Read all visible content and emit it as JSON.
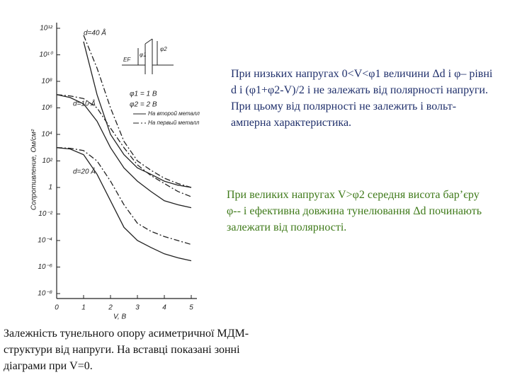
{
  "chart_data": {
    "type": "line",
    "xlabel": "V, В",
    "ylabel": "Сопротивление, Ом/см²",
    "x": [
      0,
      0.5,
      1,
      1.5,
      2,
      2.5,
      3,
      3.5,
      4,
      4.5,
      5
    ],
    "series": [
      {
        "color": "#222222",
        "line_style": "solid",
        "values": [
          null,
          null,
          100000000000.0,
          10000000.0,
          10000.0,
          300,
          30,
          10,
          3,
          1.5,
          1
        ]
      },
      {
        "color": "#222222",
        "line_style": "dashdot",
        "values": [
          null,
          null,
          300000000000.0,
          1000000000.0,
          1000000.0,
          3000,
          100,
          20,
          5,
          2,
          1
        ]
      },
      {
        "color": "#222222",
        "line_style": "solid",
        "values": [
          10000000.0,
          6000000.0,
          2000000.0,
          100000.0,
          1000,
          30,
          3,
          0.5,
          0.1,
          0.05,
          0.03
        ]
      },
      {
        "color": "#222222",
        "line_style": "dashdot",
        "values": [
          10000000.0,
          8000000.0,
          5000000.0,
          1000000.0,
          30000.0,
          1000,
          50,
          8,
          2,
          0.5,
          0.2
        ]
      },
      {
        "color": "#222222",
        "line_style": "solid",
        "values": [
          1000,
          800,
          300,
          10,
          0.1,
          0.001,
          0.0001,
          3e-05,
          1e-05,
          5e-06,
          3e-06
        ]
      },
      {
        "color": "#222222",
        "line_style": "dashdot",
        "values": [
          1000,
          900,
          600,
          100,
          3,
          0.05,
          0.002,
          0.0005,
          0.0002,
          0.0001,
          5e-05
        ]
      }
    ],
    "log_y": true,
    "xlim": [
      0,
      5
    ],
    "xticks": [
      0,
      1,
      2,
      3,
      4,
      5
    ],
    "ylim": [
      1e-08,
      1000000000000.0
    ],
    "yticks": [
      {
        "value": 1e-08,
        "label": "10⁻⁸"
      },
      {
        "value": 1e-06,
        "label": "10⁻⁶"
      },
      {
        "value": 0.0001,
        "label": "10⁻⁴"
      },
      {
        "value": 0.01,
        "label": "10⁻²"
      },
      1,
      {
        "value": 100,
        "label": "10²"
      },
      {
        "value": 10000.0,
        "label": "10⁴"
      },
      {
        "value": 1000000.0,
        "label": "10⁶"
      },
      {
        "value": 100000000.0,
        "label": "10⁸"
      },
      {
        "value": 10000000000.0,
        "label": "10¹⁰"
      },
      {
        "value": 1000000000000.0,
        "label": "10¹²"
      }
    ],
    "annotations": [
      "d=40 Å",
      "d=10 Å",
      "d=20 Å",
      "φ1 = 1 В",
      "φ2 = 2 В"
    ],
    "legend": [
      {
        "label": "На второй металл",
        "line_style": "solid"
      },
      {
        "label": "На первый металл",
        "line_style": "dashdot"
      }
    ],
    "inset_labels": [
      "φ1",
      "φ2",
      "EF"
    ]
  },
  "slide_text": {
    "paragraph_1": "При низьких напругах 0<V<φ1 величини Δd і φ– рівні d і (φ1+φ2-V)/2 і не залежать від полярності напруги. При цьому від полярності не залежить і вольт-амперна характеристика.",
    "paragraph_2": "При великих напругах V>φ2 середня висота бар’єру φ-- і ефективна довжина тунелювання Δd починають залежати від полярності.",
    "caption": "Залежність тунельного опору асиметричної МДМ-структури від напруги. На вставці показані зонні діаграми при V=0."
  }
}
